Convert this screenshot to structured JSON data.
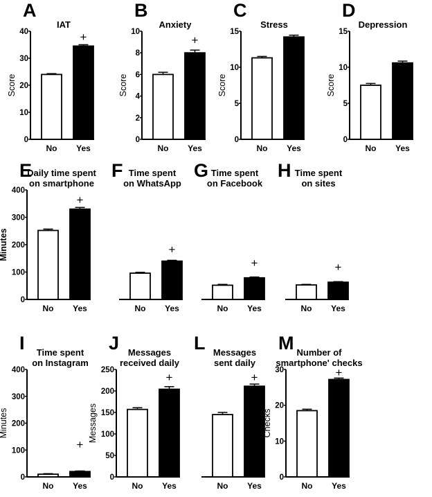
{
  "chart_data": [
    {
      "type": "bar",
      "panel": "A",
      "title": [
        "IAT"
      ],
      "ylabel": "Score",
      "ylim": [
        0,
        40
      ],
      "yticks": [
        0,
        10,
        20,
        30,
        40
      ],
      "categories": [
        "No",
        "Yes"
      ],
      "values": [
        24,
        34.5
      ],
      "errors": [
        0.3,
        0.5
      ],
      "fills": [
        "#ffffff",
        "#000000"
      ],
      "marker": "+",
      "marker_y": 38,
      "show_yaxis": true
    },
    {
      "type": "bar",
      "panel": "B",
      "title": [
        "Anxiety"
      ],
      "ylabel": "Score",
      "ylim": [
        0,
        10
      ],
      "yticks": [
        0,
        2,
        4,
        6,
        8,
        10
      ],
      "categories": [
        "No",
        "Yes"
      ],
      "values": [
        6.0,
        8.0
      ],
      "errors": [
        0.2,
        0.25
      ],
      "fills": [
        "#ffffff",
        "#000000"
      ],
      "marker": "+",
      "marker_y": 9.2,
      "show_yaxis": true
    },
    {
      "type": "bar",
      "panel": "C",
      "title": [
        "Stress"
      ],
      "ylabel": "Score",
      "ylim": [
        0,
        15
      ],
      "yticks": [
        0,
        5,
        10,
        15
      ],
      "categories": [
        "No",
        "Yes"
      ],
      "values": [
        11.3,
        14.2
      ],
      "errors": [
        0.2,
        0.25
      ],
      "fills": [
        "#ffffff",
        "#000000"
      ],
      "marker": "",
      "show_yaxis": true
    },
    {
      "type": "bar",
      "panel": "D",
      "title": [
        "Depression"
      ],
      "ylabel": "Score",
      "ylim": [
        0,
        15
      ],
      "yticks": [
        0,
        5,
        10,
        15
      ],
      "categories": [
        "No",
        "Yes"
      ],
      "values": [
        7.5,
        10.6
      ],
      "errors": [
        0.25,
        0.25
      ],
      "fills": [
        "#ffffff",
        "#000000"
      ],
      "marker": "",
      "show_yaxis": true
    },
    {
      "type": "bar",
      "panel": "E",
      "title": [
        "Daily time spent",
        "on smartphone"
      ],
      "ylabel": "Minutes",
      "ylim": [
        0,
        400
      ],
      "yticks": [
        0,
        100,
        200,
        300,
        400
      ],
      "categories": [
        "No",
        "Yes"
      ],
      "values": [
        252,
        330
      ],
      "errors": [
        5,
        6
      ],
      "fills": [
        "#ffffff",
        "#000000"
      ],
      "marker": "+",
      "marker_y": 365,
      "show_yaxis": true
    },
    {
      "type": "bar",
      "panel": "F",
      "title": [
        "Time spent",
        "on WhatsApp"
      ],
      "ylabel": "",
      "ylim": [
        0,
        400
      ],
      "yticks": [],
      "categories": [
        "No",
        "Yes"
      ],
      "values": [
        96,
        140
      ],
      "errors": [
        3,
        3
      ],
      "fills": [
        "#ffffff",
        "#000000"
      ],
      "marker": "+",
      "marker_y": 184,
      "show_yaxis": false
    },
    {
      "type": "bar",
      "panel": "G",
      "title": [
        "Time spent",
        "on Facebook"
      ],
      "ylabel": "",
      "ylim": [
        0,
        400
      ],
      "yticks": [],
      "categories": [
        "No",
        "Yes"
      ],
      "values": [
        52,
        79
      ],
      "errors": [
        3,
        3
      ],
      "fills": [
        "#ffffff",
        "#000000"
      ],
      "marker": "+",
      "marker_y": 134,
      "show_yaxis": false
    },
    {
      "type": "bar",
      "panel": "H",
      "title": [
        "Time spent",
        "on sites"
      ],
      "ylabel": "",
      "ylim": [
        0,
        400
      ],
      "yticks": [],
      "categories": [
        "No",
        "Yes"
      ],
      "values": [
        53,
        63
      ],
      "errors": [
        2,
        2
      ],
      "fills": [
        "#ffffff",
        "#000000"
      ],
      "marker": "+",
      "marker_y": 119,
      "show_yaxis": false
    },
    {
      "type": "bar",
      "panel": "I",
      "title": [
        "Time spent",
        "on Instagram"
      ],
      "ylabel": "Minutes",
      "ylim": [
        0,
        400
      ],
      "yticks": [
        0,
        100,
        200,
        300,
        400
      ],
      "categories": [
        "No",
        "Yes"
      ],
      "values": [
        10,
        20
      ],
      "errors": [
        2,
        2
      ],
      "fills": [
        "#ffffff",
        "#000000"
      ],
      "marker": "+",
      "marker_y": 121,
      "show_yaxis": true
    },
    {
      "type": "bar",
      "panel": "J",
      "title": [
        "Messages",
        "received daily"
      ],
      "ylabel": "Messages",
      "ylim": [
        0,
        250
      ],
      "yticks": [
        0,
        50,
        100,
        150,
        200,
        250
      ],
      "categories": [
        "No",
        "Yes"
      ],
      "values": [
        157,
        204
      ],
      "errors": [
        4,
        6
      ],
      "fills": [
        "#ffffff",
        "#000000"
      ],
      "marker": "+",
      "marker_y": 232,
      "show_yaxis": true
    },
    {
      "type": "bar",
      "panel": "L",
      "title": [
        "Messages",
        "sent daily"
      ],
      "ylabel": "",
      "ylim": [
        0,
        250
      ],
      "yticks": [],
      "categories": [
        "No",
        "Yes"
      ],
      "values": [
        145,
        211
      ],
      "errors": [
        5,
        5
      ],
      "fills": [
        "#ffffff",
        "#000000"
      ],
      "marker": "+",
      "marker_y": 232,
      "show_yaxis": false
    },
    {
      "type": "bar",
      "panel": "M",
      "title": [
        "Number of",
        "smartphone' checks"
      ],
      "ylabel": "Checks",
      "ylim": [
        0,
        30
      ],
      "yticks": [
        0,
        10,
        20,
        30
      ],
      "categories": [
        "No",
        "Yes"
      ],
      "values": [
        18.5,
        27.2
      ],
      "errors": [
        0.4,
        0.4
      ],
      "fills": [
        "#ffffff",
        "#000000"
      ],
      "marker": "+",
      "marker_y": 29.2,
      "show_yaxis": true
    }
  ]
}
